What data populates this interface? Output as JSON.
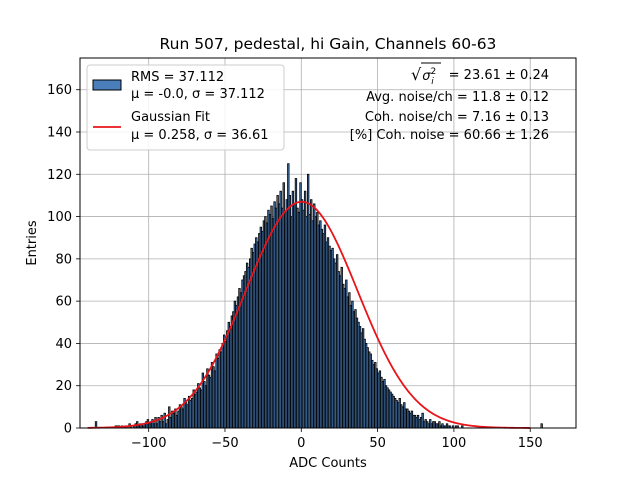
{
  "chart_data": {
    "type": "bar",
    "title": "Run 507, pedestal, hi Gain, Channels 60-63",
    "xlabel": "ADC Counts",
    "ylabel": "Entries",
    "xlim": [
      -145,
      180
    ],
    "ylim": [
      0,
      175
    ],
    "xticks": [
      -100,
      -50,
      0,
      50,
      100,
      150
    ],
    "yticks": [
      0,
      20,
      40,
      60,
      80,
      100,
      120,
      140,
      160
    ],
    "grid": true,
    "legend_position": "top-left",
    "legend": [
      {
        "line1": "RMS = 37.112",
        "line2": "μ = -0.0, σ = 37.112",
        "kind": "histogram"
      },
      {
        "line1": "Gaussian Fit",
        "line2": "μ = 0.258, σ = 36.61",
        "kind": "line"
      }
    ],
    "annotations": {
      "sqrt_sigma": "√σ²ᵢ = 23.61 ± 0.24",
      "avg_noise": "Avg. noise/ch = 11.8 ± 0.12",
      "coh_noise": "Coh. noise/ch = 7.16 ± 0.13",
      "coh_pct": "[%] Coh. noise = 60.66 ± 1.26"
    },
    "sqrt_value": "= 23.61 ± 0.24",
    "histogram": {
      "name": "RMS = 37.112",
      "bin_start": -135,
      "bin_width": 1,
      "counts": [
        3,
        0,
        0,
        0,
        0,
        0,
        0,
        0,
        0,
        0,
        0,
        0,
        0,
        1,
        1,
        1,
        0,
        1,
        0,
        1,
        1,
        0,
        2,
        1,
        0,
        1,
        2,
        3,
        1,
        2,
        2,
        1,
        2,
        3,
        4,
        2,
        3,
        4,
        2,
        5,
        2,
        5,
        3,
        6,
        3,
        7,
        2,
        4,
        10,
        5,
        8,
        7,
        9,
        6,
        8,
        11,
        10,
        9,
        14,
        12,
        11,
        15,
        13,
        14,
        18,
        16,
        17,
        21,
        19,
        18,
        26,
        22,
        20,
        28,
        25,
        24,
        31,
        29,
        27,
        35,
        33,
        37,
        36,
        40,
        44,
        41,
        46,
        50,
        48,
        53,
        55,
        60,
        58,
        62,
        66,
        64,
        70,
        72,
        74,
        78,
        76,
        80,
        85,
        83,
        87,
        90,
        88,
        92,
        95,
        93,
        98,
        100,
        97,
        103,
        101,
        105,
        99,
        107,
        104,
        110,
        106,
        112,
        104,
        116,
        102,
        108,
        125,
        110,
        100,
        112,
        106,
        118,
        104,
        102,
        116,
        108,
        103,
        112,
        100,
        120,
        101,
        108,
        98,
        106,
        100,
        102,
        96,
        98,
        94,
        92,
        96,
        88,
        90,
        86,
        84,
        85,
        80,
        78,
        82,
        74,
        72,
        76,
        68,
        66,
        70,
        62,
        64,
        58,
        60,
        55,
        56,
        52,
        50,
        48,
        45,
        47,
        42,
        40,
        38,
        36,
        35,
        32,
        30,
        31,
        28,
        26,
        27,
        24,
        22,
        23,
        20,
        19,
        18,
        17,
        16,
        15,
        14,
        13,
        12,
        14,
        11,
        10,
        12,
        9,
        9,
        8,
        7,
        8,
        6,
        6,
        5,
        6,
        4,
        5,
        7,
        3,
        4,
        3,
        2,
        4,
        2,
        3,
        3,
        2,
        2,
        3,
        1,
        2,
        1,
        1,
        2,
        1,
        1,
        0,
        1,
        0,
        1,
        1,
        0,
        0,
        1,
        0,
        0,
        0,
        0,
        0,
        0,
        0,
        0,
        0,
        0,
        0,
        0,
        0,
        0,
        0,
        0,
        0,
        0,
        0,
        0,
        0,
        0,
        0,
        0,
        0,
        0,
        0,
        0,
        0,
        0,
        0,
        0,
        0,
        0,
        0,
        0,
        0,
        0,
        0,
        0,
        0,
        0,
        0,
        0,
        0,
        0,
        0,
        0,
        0,
        0,
        0,
        2
      ]
    },
    "gaussian_fit": {
      "name": "Gaussian Fit",
      "mu": 0.258,
      "sigma": 36.61,
      "amplitude": 107
    },
    "colors": {
      "bar_fill": "#4a7ebb",
      "bar_edge": "#000000",
      "fit_line": "#e8141a",
      "grid": "#b0b0b0"
    }
  }
}
